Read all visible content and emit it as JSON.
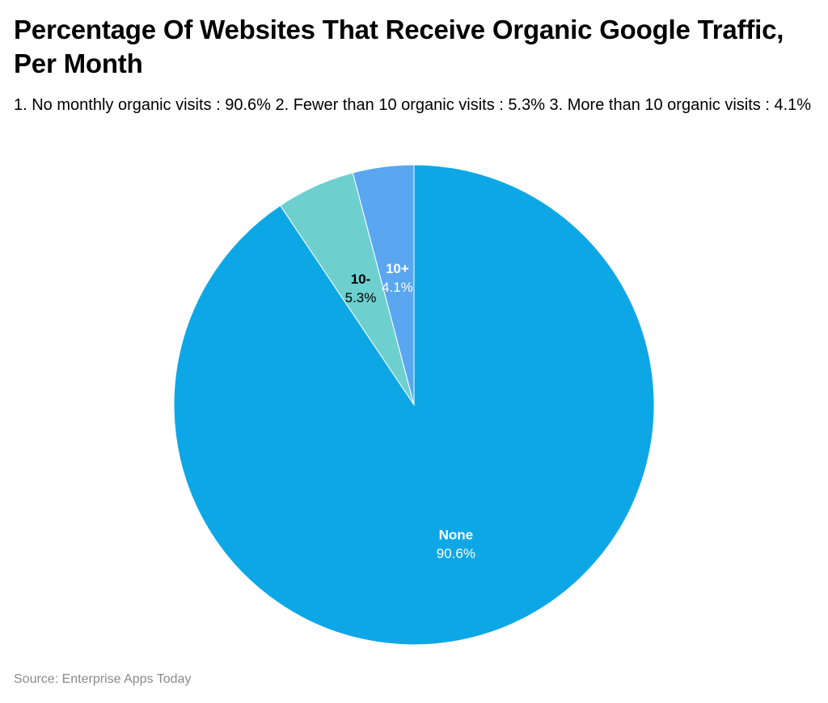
{
  "title": "Percentage Of Websites That Receive Organic Google Traffic, Per Month",
  "subtitle": "1. No monthly organic visits : 90.6% 2. Fewer than 10 organic visits : 5.3% 3. More than 10 organic visits : 4.1%",
  "source": "Source: Enterprise Apps Today",
  "chart_data": {
    "type": "pie",
    "title": "Percentage Of Websites That Receive Organic Google Traffic, Per Month",
    "slices": [
      {
        "name": "None",
        "value": 90.6,
        "value_label": "90.6%",
        "color": "#0ea7e6",
        "label_color": "#ffffff"
      },
      {
        "name": "10-",
        "value": 5.3,
        "value_label": "5.3%",
        "color": "#6ecfcf",
        "label_color": "#000000"
      },
      {
        "name": "10+",
        "value": 4.1,
        "value_label": "4.1%",
        "color": "#5aa6f0",
        "label_color": "#ffffff"
      }
    ],
    "start_angle": "12 o'clock",
    "direction": "clockwise",
    "legend": "none"
  }
}
